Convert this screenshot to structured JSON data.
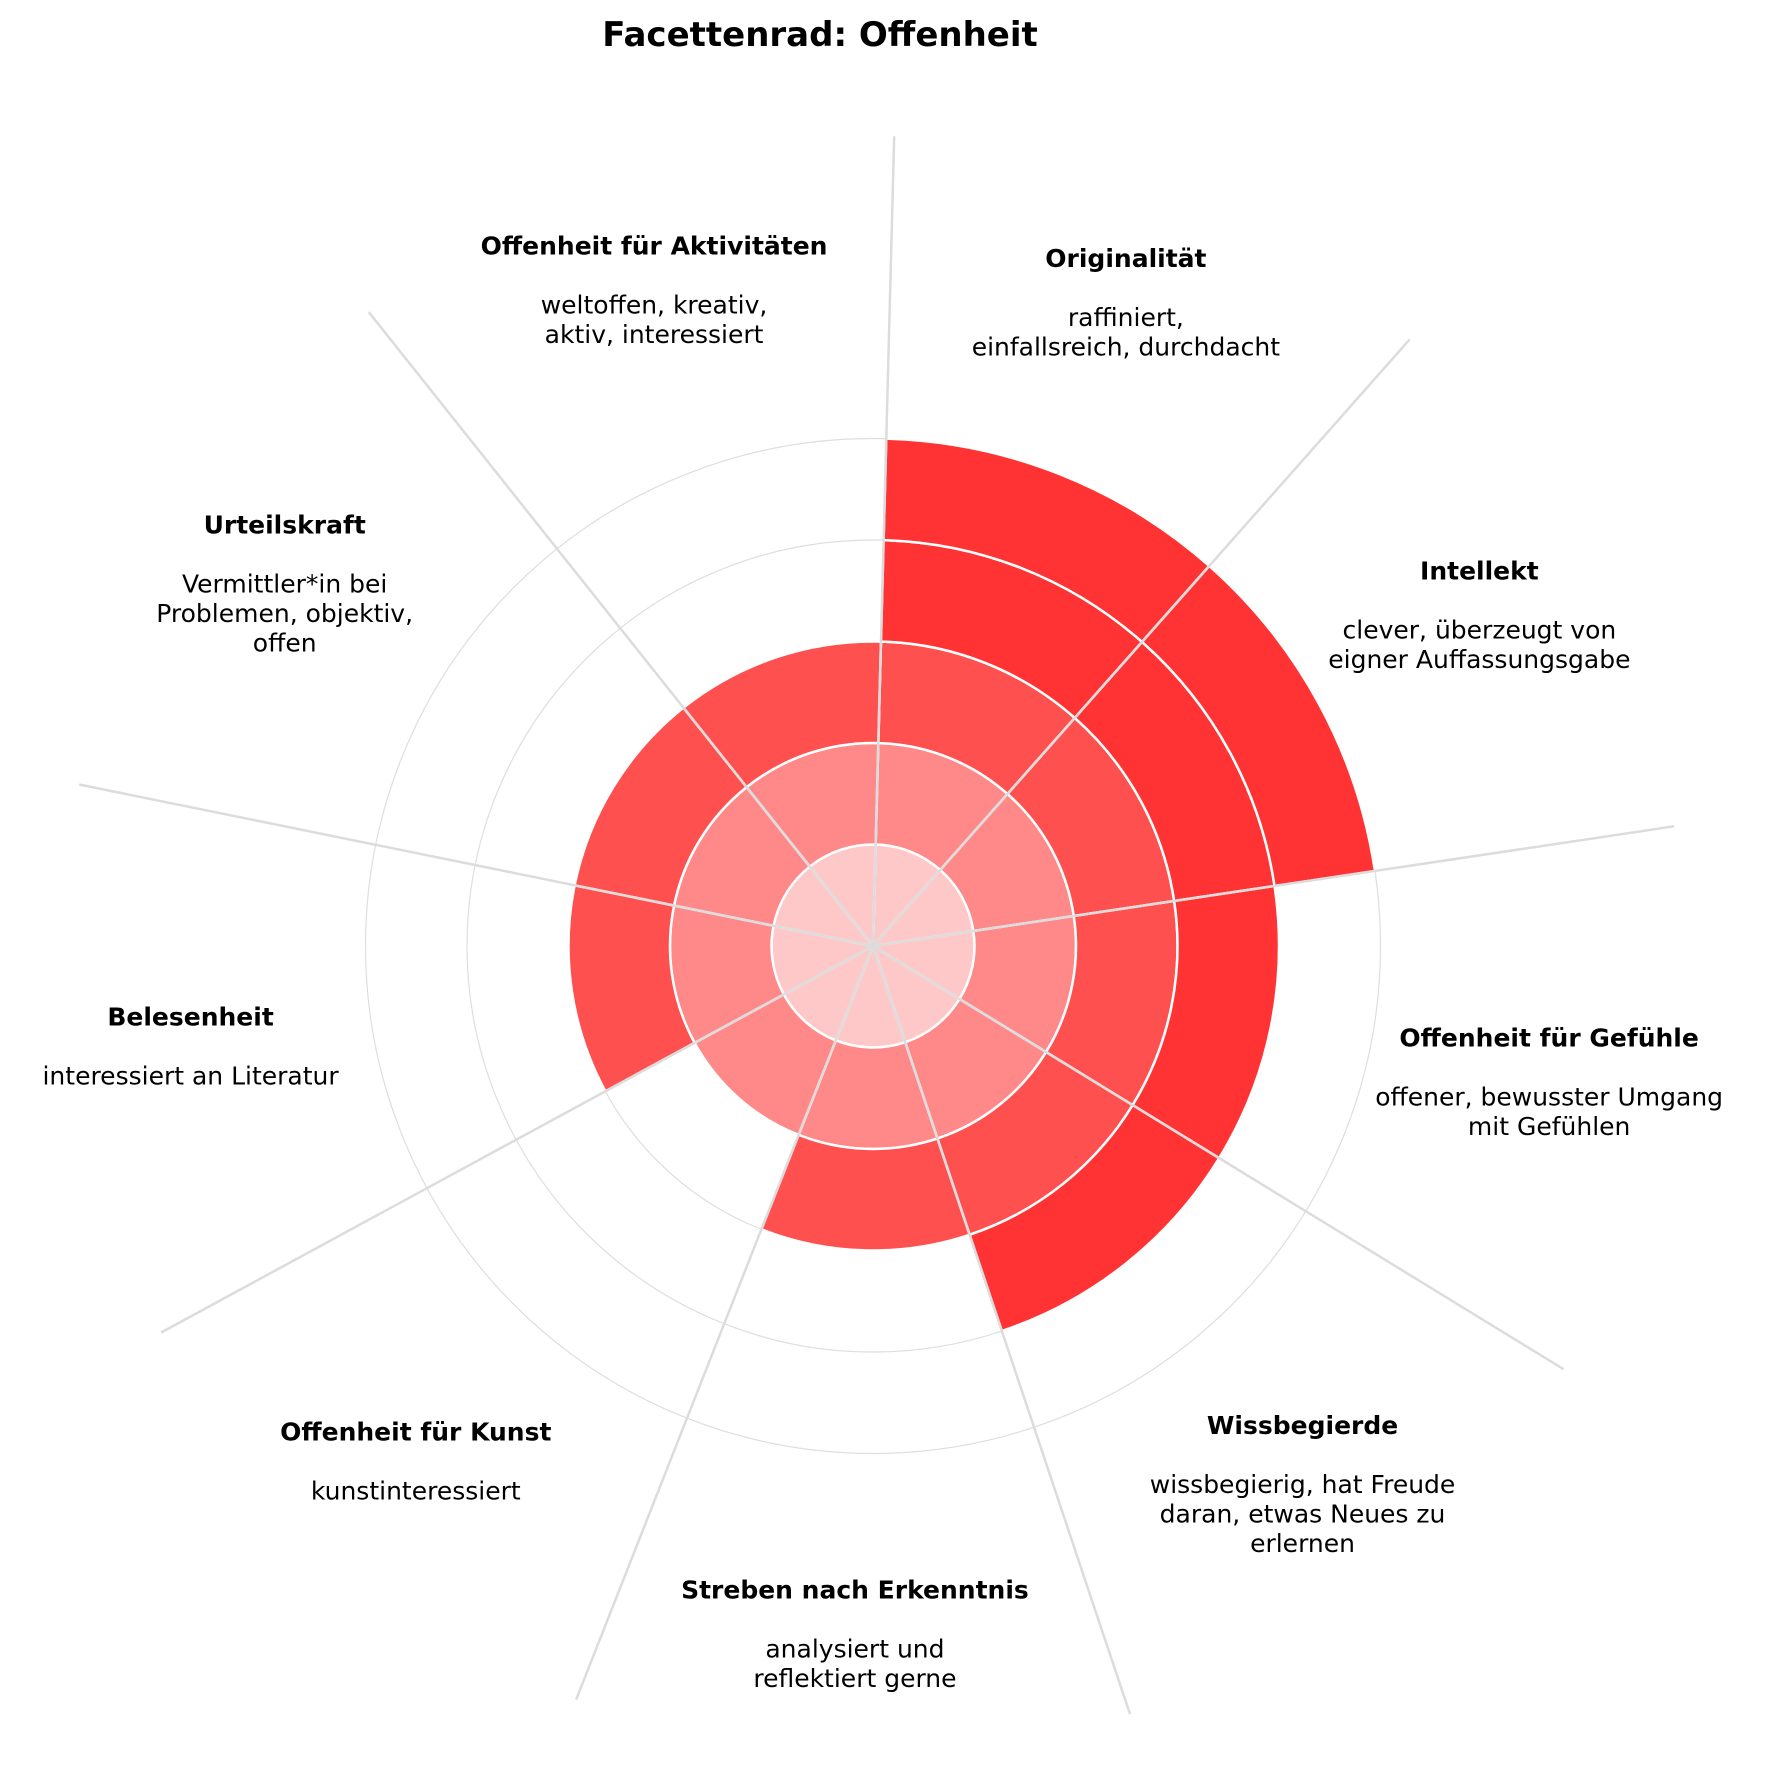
{
  "chart_data": {
    "type": "polar-bar",
    "title": "Facettenrad: Offenheit",
    "rmax": 5,
    "ring_colors": [
      "#ffc8c8",
      "#ff8888",
      "#ff5050",
      "#ff3333",
      "#ff3333"
    ],
    "facets": [
      {
        "name": "Originalität",
        "description": [
          "raffiniert,",
          "einfallsreich, durchdacht"
        ],
        "value": 5
      },
      {
        "name": "Intellekt",
        "description": [
          "clever, überzeugt von",
          "eigner Auffassungsgabe"
        ],
        "value": 5
      },
      {
        "name": "Offenheit für Gefühle",
        "description": [
          "offener, bewusster Umgang",
          "mit Gefühlen"
        ],
        "value": 4
      },
      {
        "name": "Wissbegierde",
        "description": [
          "wissbegierig, hat Freude",
          "daran, etwas Neues zu",
          "erlernen"
        ],
        "value": 4
      },
      {
        "name": "Streben nach Erkenntnis",
        "description": [
          "analysiert und",
          "reflektiert gerne"
        ],
        "value": 3
      },
      {
        "name": "Offenheit für Kunst",
        "description": [
          "kunstinteressiert"
        ],
        "value": 2
      },
      {
        "name": "Belesenheit",
        "description": [
          "interessiert an Literatur"
        ],
        "value": 3
      },
      {
        "name": "Urteilskraft",
        "description": [
          "Vermittler*in bei",
          "Problemen, objektiv,",
          "offen"
        ],
        "value": 3
      },
      {
        "name": "Offenheit für Aktivitäten",
        "description": [
          "weltoffen, kreativ,",
          "aktiv, interessiert"
        ],
        "value": 3
      }
    ]
  }
}
